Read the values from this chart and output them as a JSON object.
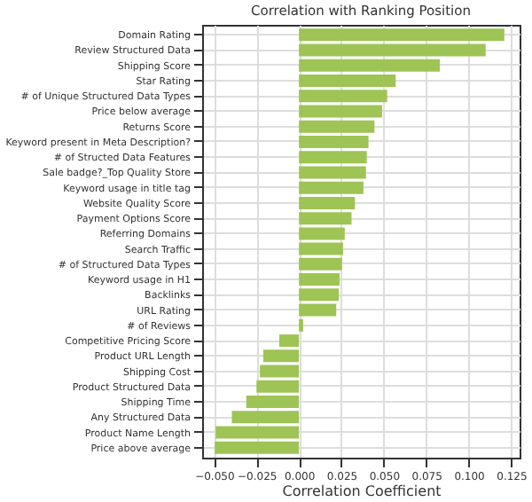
{
  "chart_data": {
    "type": "bar",
    "orientation": "horizontal",
    "title": "Correlation with Ranking Position",
    "xlabel": "Correlation Coefficient",
    "categories": [
      "Domain Rating",
      "Review Structured Data",
      "Shipping Score",
      "Star Rating",
      "# of Unique Structured Data Types",
      "Price below average",
      "Returns Score",
      "Keyword present in Meta Description?",
      "# of Structed Data Features",
      "Sale badge?_Top Quality Store",
      "Keyword usage in title tag",
      "Website Quality Score",
      "Payment Options Score",
      "Referring Domains",
      "Search Traffic",
      "# of Structured Data Types",
      "Keyword usage in H1",
      "Backlinks",
      "URL Rating",
      "# of Reviews",
      "Competitive Pricing Score",
      "Product URL Length",
      "Shipping Cost",
      "Product Structured Data",
      "Shipping Time",
      "Any Structured Data",
      "Product Name Length",
      "Price above average"
    ],
    "values": [
      0.121,
      0.11,
      0.083,
      0.057,
      0.052,
      0.049,
      0.0445,
      0.041,
      0.04,
      0.0395,
      0.038,
      0.033,
      0.031,
      0.027,
      0.026,
      0.0254,
      0.024,
      0.0235,
      0.022,
      0.0025,
      -0.0116,
      -0.021,
      -0.023,
      -0.025,
      -0.031,
      -0.0395,
      -0.049,
      -0.0496
    ],
    "color": "#9dc455",
    "xlim": [
      -0.057,
      0.13
    ],
    "xticks": [
      {
        "value": -0.05,
        "label": "−0.050"
      },
      {
        "value": -0.025,
        "label": "−0.025"
      },
      {
        "value": 0,
        "label": "0.000"
      },
      {
        "value": 0.025,
        "label": "0.025"
      },
      {
        "value": 0.05,
        "label": "0.050"
      },
      {
        "value": 0.075,
        "label": "0.075"
      },
      {
        "value": 0.1,
        "label": "0.100"
      },
      {
        "value": 0.125,
        "label": "0.125"
      }
    ],
    "grid": true
  }
}
